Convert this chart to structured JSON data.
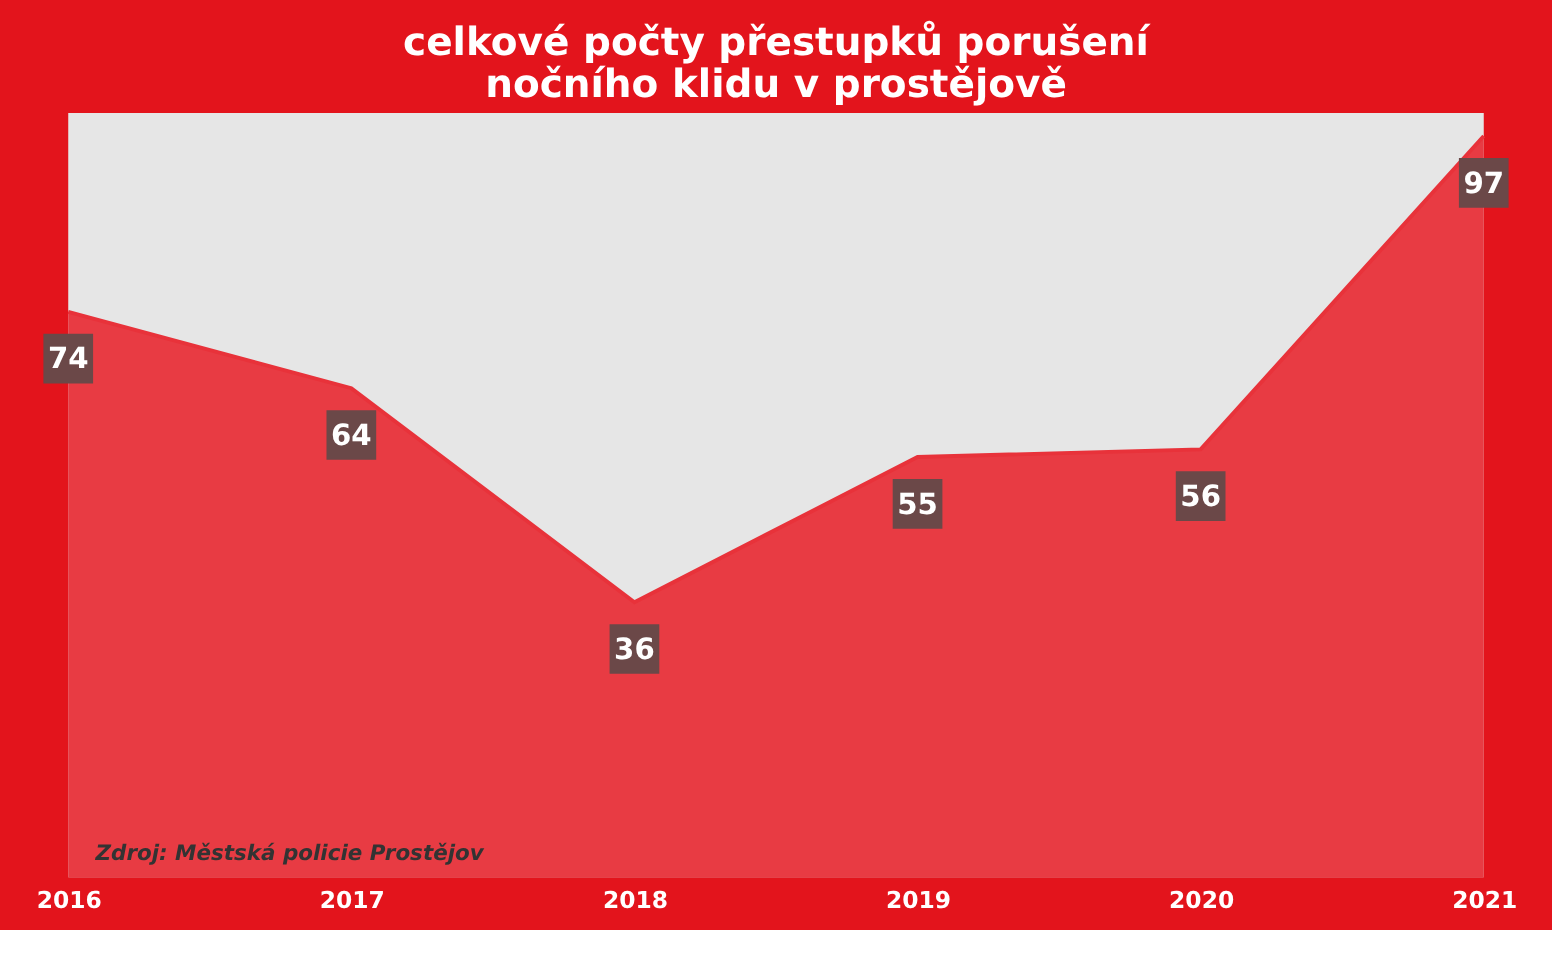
{
  "chart_data": {
    "type": "area",
    "title": [
      "celkové počty přestupků porušení",
      "nočního klidu v prostějově"
    ],
    "categories": [
      "2016",
      "2017",
      "2018",
      "2019",
      "2020",
      "2021"
    ],
    "series": [
      {
        "color": "#e8323a",
        "values": [
          74,
          64,
          36,
          55,
          56,
          97
        ]
      }
    ],
    "data_labels": true,
    "grid": false,
    "annotations": [
      "Zdroj: Městská policie Prostějov"
    ]
  }
}
